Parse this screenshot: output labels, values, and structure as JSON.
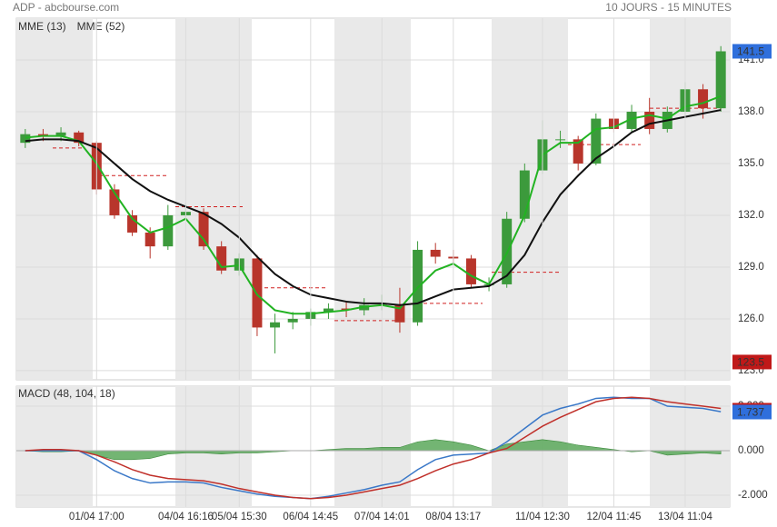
{
  "chart_data": [
    {
      "type": "candlestick",
      "title": "ADP - abcbourse.com",
      "subtitle": "10 JOURS - 15 MINUTES",
      "open": [
        136.2,
        136.7,
        136.6,
        136.8,
        136.2,
        133.5,
        132.0,
        131.0,
        130.2,
        132.0,
        132.2,
        130.2,
        128.8,
        129.5,
        125.5,
        125.8,
        126.0,
        126.4,
        126.6,
        126.5,
        126.8,
        126.8,
        125.8,
        130.0,
        129.6,
        129.5,
        128.0,
        128.0,
        131.8,
        134.6,
        136.4,
        136.4,
        135.0,
        137.6,
        137.0,
        138.0,
        137.0,
        138.0,
        139.3,
        138.2
      ],
      "high": [
        137.0,
        137.0,
        137.1,
        136.9,
        136.3,
        133.8,
        132.3,
        131.3,
        132.6,
        132.7,
        132.4,
        130.5,
        129.8,
        129.7,
        126.3,
        126.4,
        126.6,
        126.9,
        127.0,
        127.2,
        127.4,
        127.8,
        130.5,
        130.4,
        130.0,
        129.7,
        128.4,
        132.2,
        135.0,
        137.5,
        136.9,
        136.6,
        137.9,
        138.1,
        138.4,
        138.8,
        138.3,
        139.7,
        139.6,
        141.8
      ],
      "low": [
        135.9,
        136.3,
        136.3,
        136.0,
        133.2,
        131.8,
        130.8,
        129.5,
        130.0,
        131.8,
        130.0,
        128.6,
        128.5,
        125.0,
        124.0,
        125.4,
        125.6,
        126.0,
        126.1,
        126.2,
        126.5,
        125.2,
        125.6,
        129.2,
        129.2,
        127.8,
        127.6,
        127.8,
        131.6,
        134.4,
        135.9,
        134.6,
        134.9,
        136.8,
        136.8,
        136.7,
        136.8,
        137.8,
        137.6,
        138.0
      ],
      "close": [
        136.7,
        136.6,
        136.8,
        136.2,
        133.5,
        132.0,
        131.0,
        130.2,
        132.0,
        132.2,
        130.2,
        128.8,
        129.5,
        125.5,
        125.8,
        126.0,
        126.4,
        126.6,
        126.5,
        126.8,
        126.8,
        125.8,
        130.0,
        129.6,
        129.5,
        128.0,
        128.0,
        131.8,
        134.6,
        136.4,
        136.4,
        135.0,
        137.6,
        137.0,
        138.0,
        137.0,
        138.0,
        139.3,
        138.2,
        141.5
      ],
      "up_color": "#3c9a3c",
      "down_color": "#b8352b",
      "series": [
        {
          "name": "MME (13)",
          "color": "#22b322",
          "values": [
            136.5,
            136.6,
            136.6,
            136.3,
            135.0,
            133.3,
            131.8,
            131.0,
            131.3,
            131.8,
            130.6,
            129.0,
            129.1,
            127.4,
            126.5,
            126.3,
            126.3,
            126.4,
            126.5,
            126.7,
            126.8,
            126.6,
            127.8,
            128.8,
            129.2,
            128.5,
            128.0,
            129.8,
            132.0,
            135.5,
            136.2,
            136.2,
            137.0,
            137.1,
            137.6,
            137.8,
            137.6,
            138.3,
            138.5,
            138.9
          ]
        },
        {
          "name": "MME (52)",
          "color": "#111111",
          "values": [
            136.3,
            136.4,
            136.4,
            136.3,
            135.9,
            135.0,
            134.1,
            133.4,
            132.9,
            132.5,
            132.1,
            131.5,
            130.7,
            129.6,
            128.6,
            127.9,
            127.4,
            127.2,
            127.0,
            126.9,
            126.9,
            126.8,
            126.9,
            127.3,
            127.7,
            127.8,
            127.9,
            128.5,
            129.7,
            131.6,
            133.2,
            134.3,
            135.3,
            136.0,
            136.8,
            137.3,
            137.5,
            137.7,
            137.9,
            138.1
          ]
        }
      ],
      "levels": [
        135.9,
        134.3,
        132.5,
        127.8,
        125.9,
        126.9,
        128.7,
        136.1,
        138.2
      ],
      "level_color": "#d02020",
      "ylim": [
        122.47,
        143.42
      ],
      "yticks": [
        {
          "value": 123,
          "label": "123.0"
        },
        {
          "value": 126,
          "label": "126.0"
        },
        {
          "value": 129,
          "label": "129.0"
        },
        {
          "value": 132,
          "label": "132.0"
        },
        {
          "value": 135,
          "label": "135.0"
        },
        {
          "value": 138,
          "label": "138.0"
        },
        {
          "value": 141,
          "label": "141.0"
        }
      ],
      "last_value": {
        "value": 141.5,
        "label": "141.5"
      },
      "low_value": {
        "value": 123.5,
        "label": "123.5"
      },
      "grid": true
    },
    {
      "type": "macd",
      "title": "MACD (48, 104, 18)",
      "categories": [
        null,
        null,
        null,
        null,
        "01/04 17:00",
        null,
        null,
        null,
        null,
        "04/04 16:16",
        null,
        null,
        "05/04 15:30",
        null,
        null,
        null,
        "06/04 14:45",
        null,
        null,
        null,
        "07/04 14:01",
        null,
        null,
        null,
        "08/04 13:17",
        null,
        null,
        null,
        null,
        "11/04 12:30",
        null,
        null,
        null,
        "12/04 11:45",
        null,
        null,
        null,
        "13/04 11:04",
        null,
        null
      ],
      "series": [
        {
          "color": "#3a78c8",
          "values": [
            0,
            0,
            0,
            0,
            -0.4,
            -0.9,
            -1.25,
            -1.45,
            -1.4,
            -1.4,
            -1.45,
            -1.65,
            -1.8,
            -1.95,
            -2.05,
            -2.1,
            -2.15,
            -2.05,
            -1.9,
            -1.75,
            -1.55,
            -1.4,
            -0.85,
            -0.4,
            -0.2,
            -0.15,
            -0.1,
            0.4,
            1.0,
            1.6,
            1.9,
            2.1,
            2.35,
            2.4,
            2.35,
            2.35,
            2.0,
            1.95,
            1.9,
            1.75
          ]
        },
        {
          "color": "#c0302a",
          "values": [
            0,
            0.05,
            0.05,
            0,
            -0.2,
            -0.5,
            -0.85,
            -1.1,
            -1.25,
            -1.3,
            -1.35,
            -1.5,
            -1.7,
            -1.85,
            -2.0,
            -2.1,
            -2.15,
            -2.1,
            -2.0,
            -1.85,
            -1.7,
            -1.55,
            -1.25,
            -0.9,
            -0.6,
            -0.4,
            -0.1,
            0.1,
            0.6,
            1.1,
            1.5,
            1.85,
            2.2,
            2.35,
            2.4,
            2.35,
            2.2,
            2.1,
            2.0,
            1.9
          ]
        }
      ],
      "histogram": {
        "color": "#5aa85a",
        "values": [
          0,
          -0.05,
          -0.05,
          0,
          -0.2,
          -0.4,
          -0.4,
          -0.35,
          -0.15,
          -0.1,
          -0.1,
          -0.15,
          -0.1,
          -0.1,
          -0.05,
          0,
          0,
          0.05,
          0.1,
          0.1,
          0.15,
          0.15,
          0.4,
          0.5,
          0.4,
          0.25,
          0,
          0.3,
          0.4,
          0.5,
          0.4,
          0.25,
          0.15,
          0.05,
          -0.05,
          0,
          -0.2,
          -0.15,
          -0.1,
          -0.15
        ]
      },
      "ylim": [
        -2.53,
        2.9
      ],
      "yticks": [
        {
          "value": -2,
          "label": "-2.000"
        },
        {
          "value": 0,
          "label": "0.000"
        },
        {
          "value": 2,
          "label": "2.000"
        }
      ],
      "last_value": {
        "value": 1.737,
        "label": "1.737"
      },
      "grid": true
    }
  ]
}
